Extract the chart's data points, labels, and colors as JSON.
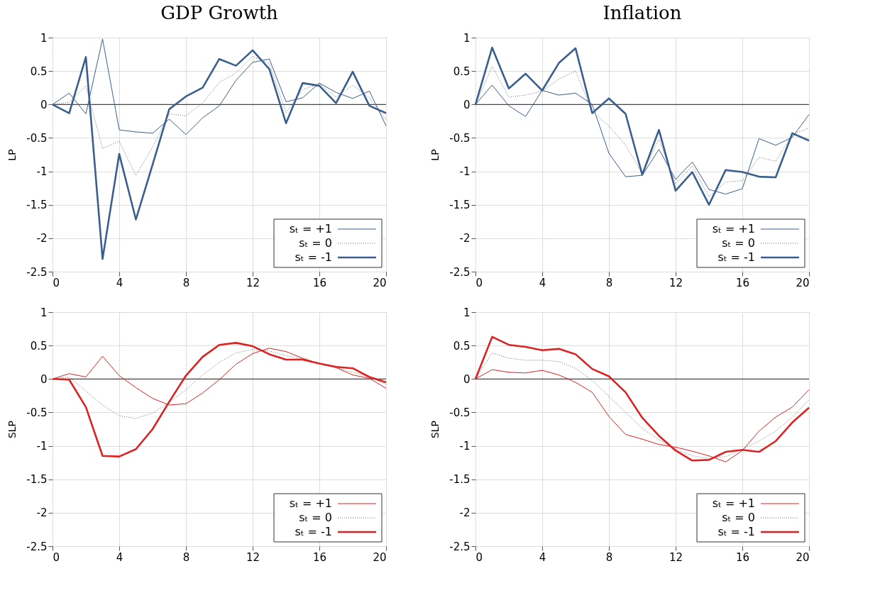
{
  "chart_data": [
    {
      "type": "line",
      "title": "GDP Growth",
      "ylabel": "LP",
      "x": [
        0,
        1,
        2,
        3,
        4,
        5,
        6,
        7,
        8,
        9,
        10,
        11,
        12,
        13,
        14,
        15,
        16,
        17,
        18,
        19,
        20
      ],
      "xlim": [
        0,
        20
      ],
      "xticks": [
        0,
        4,
        8,
        12,
        16,
        20
      ],
      "ylim": [
        -2.5,
        1
      ],
      "yticks": [
        -2.5,
        -2,
        -1.5,
        -1,
        -0.5,
        0,
        0.5,
        1
      ],
      "grid": true,
      "legend": "bottom right",
      "ref_lines": [
        {
          "axis": "y",
          "value": 0,
          "color": "#444444"
        }
      ],
      "series": [
        {
          "name": "sₜ = +1",
          "color": "#3a5f8f",
          "line_style": "solid",
          "values": [
            0,
            0.17,
            -0.14,
            0.98,
            -0.38,
            -0.41,
            -0.43,
            -0.22,
            -0.45,
            -0.2,
            -0.02,
            0.36,
            0.63,
            0.68,
            0.04,
            0.1,
            0.32,
            0.18,
            0.09,
            0.2,
            -0.32
          ]
        },
        {
          "name": "sₜ = 0",
          "color": "#666666",
          "line_style": "dotted",
          "values": [
            0,
            0.03,
            0.28,
            -0.66,
            -0.55,
            -1.06,
            -0.64,
            -0.14,
            -0.17,
            0.02,
            0.33,
            0.47,
            0.72,
            0.61,
            -0.12,
            0.22,
            0.31,
            0.11,
            0.29,
            0.1,
            -0.23
          ]
        },
        {
          "name": "sₜ = -1",
          "color": "#3a5f8f",
          "line_style": "solid",
          "values": [
            0,
            -0.13,
            0.71,
            -2.31,
            -0.74,
            -1.72,
            -0.9,
            -0.07,
            0.12,
            0.25,
            0.68,
            0.58,
            0.81,
            0.53,
            -0.28,
            0.32,
            0.28,
            0.02,
            0.49,
            -0.02,
            -0.13
          ]
        }
      ]
    },
    {
      "type": "line",
      "title": "Inflation",
      "ylabel": "LP",
      "x": [
        0,
        1,
        2,
        3,
        4,
        5,
        6,
        7,
        8,
        9,
        10,
        11,
        12,
        13,
        14,
        15,
        16,
        17,
        18,
        19,
        20
      ],
      "xlim": [
        0,
        20
      ],
      "xticks": [
        0,
        4,
        8,
        12,
        16,
        20
      ],
      "ylim": [
        -2.5,
        1
      ],
      "yticks": [
        -2.5,
        -2,
        -1.5,
        -1,
        -0.5,
        0,
        0.5,
        1
      ],
      "grid": true,
      "legend": "bottom right",
      "ref_lines": [
        {
          "axis": "y",
          "value": 0,
          "color": "#444444"
        }
      ],
      "series": [
        {
          "name": "sₜ = +1",
          "color": "#3a5f8f",
          "line_style": "solid",
          "values": [
            0,
            0.29,
            -0.02,
            -0.18,
            0.21,
            0.14,
            0.17,
            0,
            -0.73,
            -1.08,
            -1.06,
            -0.67,
            -1.12,
            -0.86,
            -1.27,
            -1.34,
            -1.26,
            -0.51,
            -0.61,
            -0.49,
            -0.15
          ]
        },
        {
          "name": "sₜ = 0",
          "color": "#666666",
          "line_style": "dotted",
          "values": [
            0,
            0.57,
            0.11,
            0.14,
            0.2,
            0.38,
            0.5,
            -0.11,
            -0.32,
            -0.61,
            -1.03,
            -0.52,
            -1.19,
            -0.92,
            -1.38,
            -1.16,
            -1.14,
            -0.79,
            -0.85,
            -0.45,
            -0.35
          ]
        },
        {
          "name": "sₜ = -1",
          "color": "#3a5f8f",
          "line_style": "solid",
          "values": [
            0,
            0.85,
            0.24,
            0.46,
            0.21,
            0.62,
            0.84,
            -0.13,
            0.09,
            -0.14,
            -1.05,
            -0.38,
            -1.29,
            -1.01,
            -1.5,
            -0.98,
            -1.01,
            -1.08,
            -1.09,
            -0.43,
            -0.54
          ]
        }
      ]
    },
    {
      "type": "line",
      "ylabel": "SLP",
      "x": [
        0,
        1,
        2,
        3,
        4,
        5,
        6,
        7,
        8,
        9,
        10,
        11,
        12,
        13,
        14,
        15,
        16,
        17,
        18,
        19,
        20
      ],
      "xlim": [
        0,
        20
      ],
      "xticks": [
        0,
        4,
        8,
        12,
        16,
        20
      ],
      "ylim": [
        -2.5,
        1
      ],
      "yticks": [
        -2.5,
        -2,
        -1.5,
        -1,
        -0.5,
        0,
        0.5,
        1
      ],
      "grid": true,
      "legend": "bottom right",
      "ref_lines": [
        {
          "axis": "y",
          "value": 0,
          "color": "#444444"
        }
      ],
      "series": [
        {
          "name": "sₜ = +1",
          "color": "#dd2222",
          "line_style": "solid",
          "values": [
            0,
            0.08,
            0.03,
            0.34,
            0.05,
            -0.13,
            -0.29,
            -0.39,
            -0.37,
            -0.21,
            -0.01,
            0.22,
            0.38,
            0.46,
            0.41,
            0.31,
            0.23,
            0.17,
            0.06,
            0.01,
            -0.14
          ]
        },
        {
          "name": "sₜ = 0",
          "color": "#666666",
          "line_style": "dotted",
          "values": [
            0,
            0.03,
            -0.18,
            -0.39,
            -0.55,
            -0.59,
            -0.51,
            -0.35,
            -0.16,
            0.06,
            0.25,
            0.39,
            0.44,
            0.42,
            0.35,
            0.3,
            0.23,
            0.17,
            0.1,
            0.03,
            -0.08
          ]
        },
        {
          "name": "sₜ = -1",
          "color": "#dd2222",
          "line_style": "solid",
          "values": [
            0,
            -0.01,
            -0.42,
            -1.15,
            -1.16,
            -1.05,
            -0.75,
            -0.34,
            0.05,
            0.33,
            0.51,
            0.54,
            0.49,
            0.37,
            0.29,
            0.29,
            0.23,
            0.18,
            0.16,
            0.03,
            -0.05
          ]
        }
      ]
    },
    {
      "type": "line",
      "ylabel": "SLP",
      "x": [
        0,
        1,
        2,
        3,
        4,
        5,
        6,
        7,
        8,
        9,
        10,
        11,
        12,
        13,
        14,
        15,
        16,
        17,
        18,
        19,
        20
      ],
      "xlim": [
        0,
        20
      ],
      "xticks": [
        0,
        4,
        8,
        12,
        16,
        20
      ],
      "ylim": [
        -2.5,
        1
      ],
      "yticks": [
        -2.5,
        -2,
        -1.5,
        -1,
        -0.5,
        0,
        0.5,
        1
      ],
      "grid": true,
      "legend": "bottom right",
      "ref_lines": [
        {
          "axis": "y",
          "value": 0,
          "color": "#444444"
        }
      ],
      "series": [
        {
          "name": "sₜ = +1",
          "color": "#dd2222",
          "line_style": "solid",
          "values": [
            0,
            0.14,
            0.1,
            0.09,
            0.13,
            0.06,
            -0.05,
            -0.2,
            -0.56,
            -0.83,
            -0.9,
            -0.98,
            -1.02,
            -1.08,
            -1.15,
            -1.24,
            -1.07,
            -0.78,
            -0.57,
            -0.42,
            -0.16
          ]
        },
        {
          "name": "sₜ = 0",
          "color": "#666666",
          "line_style": "dotted",
          "values": [
            0,
            0.39,
            0.31,
            0.28,
            0.28,
            0.26,
            0.16,
            -0.02,
            -0.26,
            -0.5,
            -0.74,
            -0.91,
            -1.05,
            -1.15,
            -1.19,
            -1.16,
            -1.05,
            -0.93,
            -0.78,
            -0.57,
            -0.31
          ]
        },
        {
          "name": "sₜ = -1",
          "color": "#dd2222",
          "line_style": "solid",
          "values": [
            0,
            0.63,
            0.51,
            0.48,
            0.43,
            0.45,
            0.37,
            0.15,
            0.04,
            -0.2,
            -0.58,
            -0.85,
            -1.07,
            -1.22,
            -1.21,
            -1.09,
            -1.06,
            -1.09,
            -0.93,
            -0.65,
            -0.43
          ]
        }
      ]
    }
  ]
}
